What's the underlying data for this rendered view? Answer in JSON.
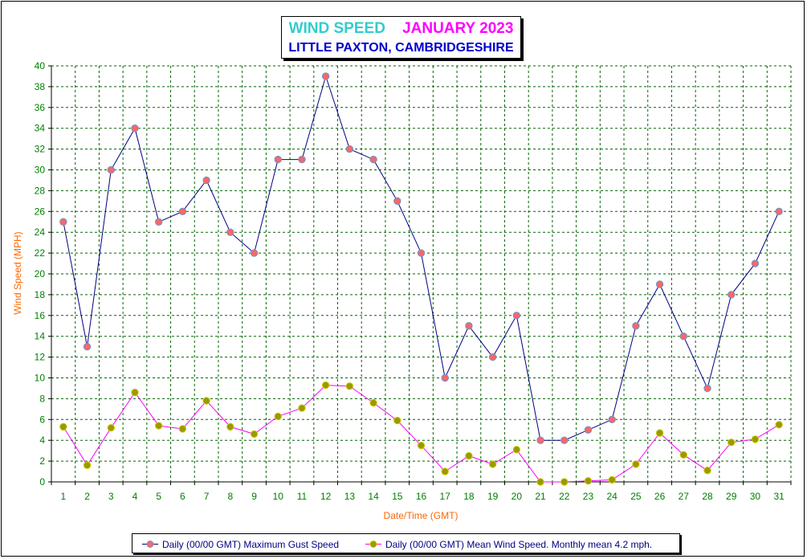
{
  "title": {
    "part1": "WIND SPEED",
    "part2": "JANUARY 2023",
    "subtitle": "LITTLE PAXTON, CAMBRIDGESHIRE"
  },
  "colors": {
    "title_part1": "#33cccc",
    "title_part2": "#ff00ff",
    "subtitle": "#0000cc",
    "axis_label": "#ff6600",
    "tick_label": "#008000",
    "grid": "#006400",
    "gust_line": "#000080",
    "gust_marker": "#ff6666",
    "gust_marker_edge": "#6699cc",
    "mean_line": "#ff00ff",
    "mean_marker": "#999900",
    "mean_marker_edge": "#cccc00"
  },
  "chart_data": {
    "type": "line",
    "xlabel": "Date/Time (GMT)",
    "ylabel": "Wind Speed (MPH)",
    "ylim": [
      0,
      40
    ],
    "ytick_step": 2,
    "grid": true,
    "legend_position": "bottom",
    "categories": [
      1,
      2,
      3,
      4,
      5,
      6,
      7,
      8,
      9,
      10,
      11,
      12,
      13,
      14,
      15,
      16,
      17,
      18,
      19,
      20,
      21,
      22,
      23,
      24,
      25,
      26,
      27,
      28,
      29,
      30,
      31
    ],
    "series": [
      {
        "name": "Daily (00/00 GMT) Maximum Gust Speed",
        "values": [
          25,
          13,
          30,
          34,
          25,
          26,
          29,
          24,
          22,
          31,
          31,
          39,
          32,
          31,
          27,
          22,
          10,
          15,
          12,
          16,
          4,
          4,
          5,
          6,
          15,
          19,
          14,
          9,
          18,
          21,
          26
        ]
      },
      {
        "name": "Daily (00/00 GMT) Mean Wind Speed. Monthly mean 4.2 mph.",
        "values": [
          5.3,
          1.6,
          5.2,
          8.6,
          5.4,
          5.1,
          7.8,
          5.3,
          4.6,
          6.3,
          7.1,
          9.3,
          9.2,
          7.6,
          5.9,
          3.5,
          1.0,
          2.5,
          1.7,
          3.1,
          0.0,
          0.0,
          0.1,
          0.2,
          1.7,
          4.7,
          2.6,
          1.1,
          3.8,
          4.1,
          5.5
        ]
      }
    ]
  }
}
